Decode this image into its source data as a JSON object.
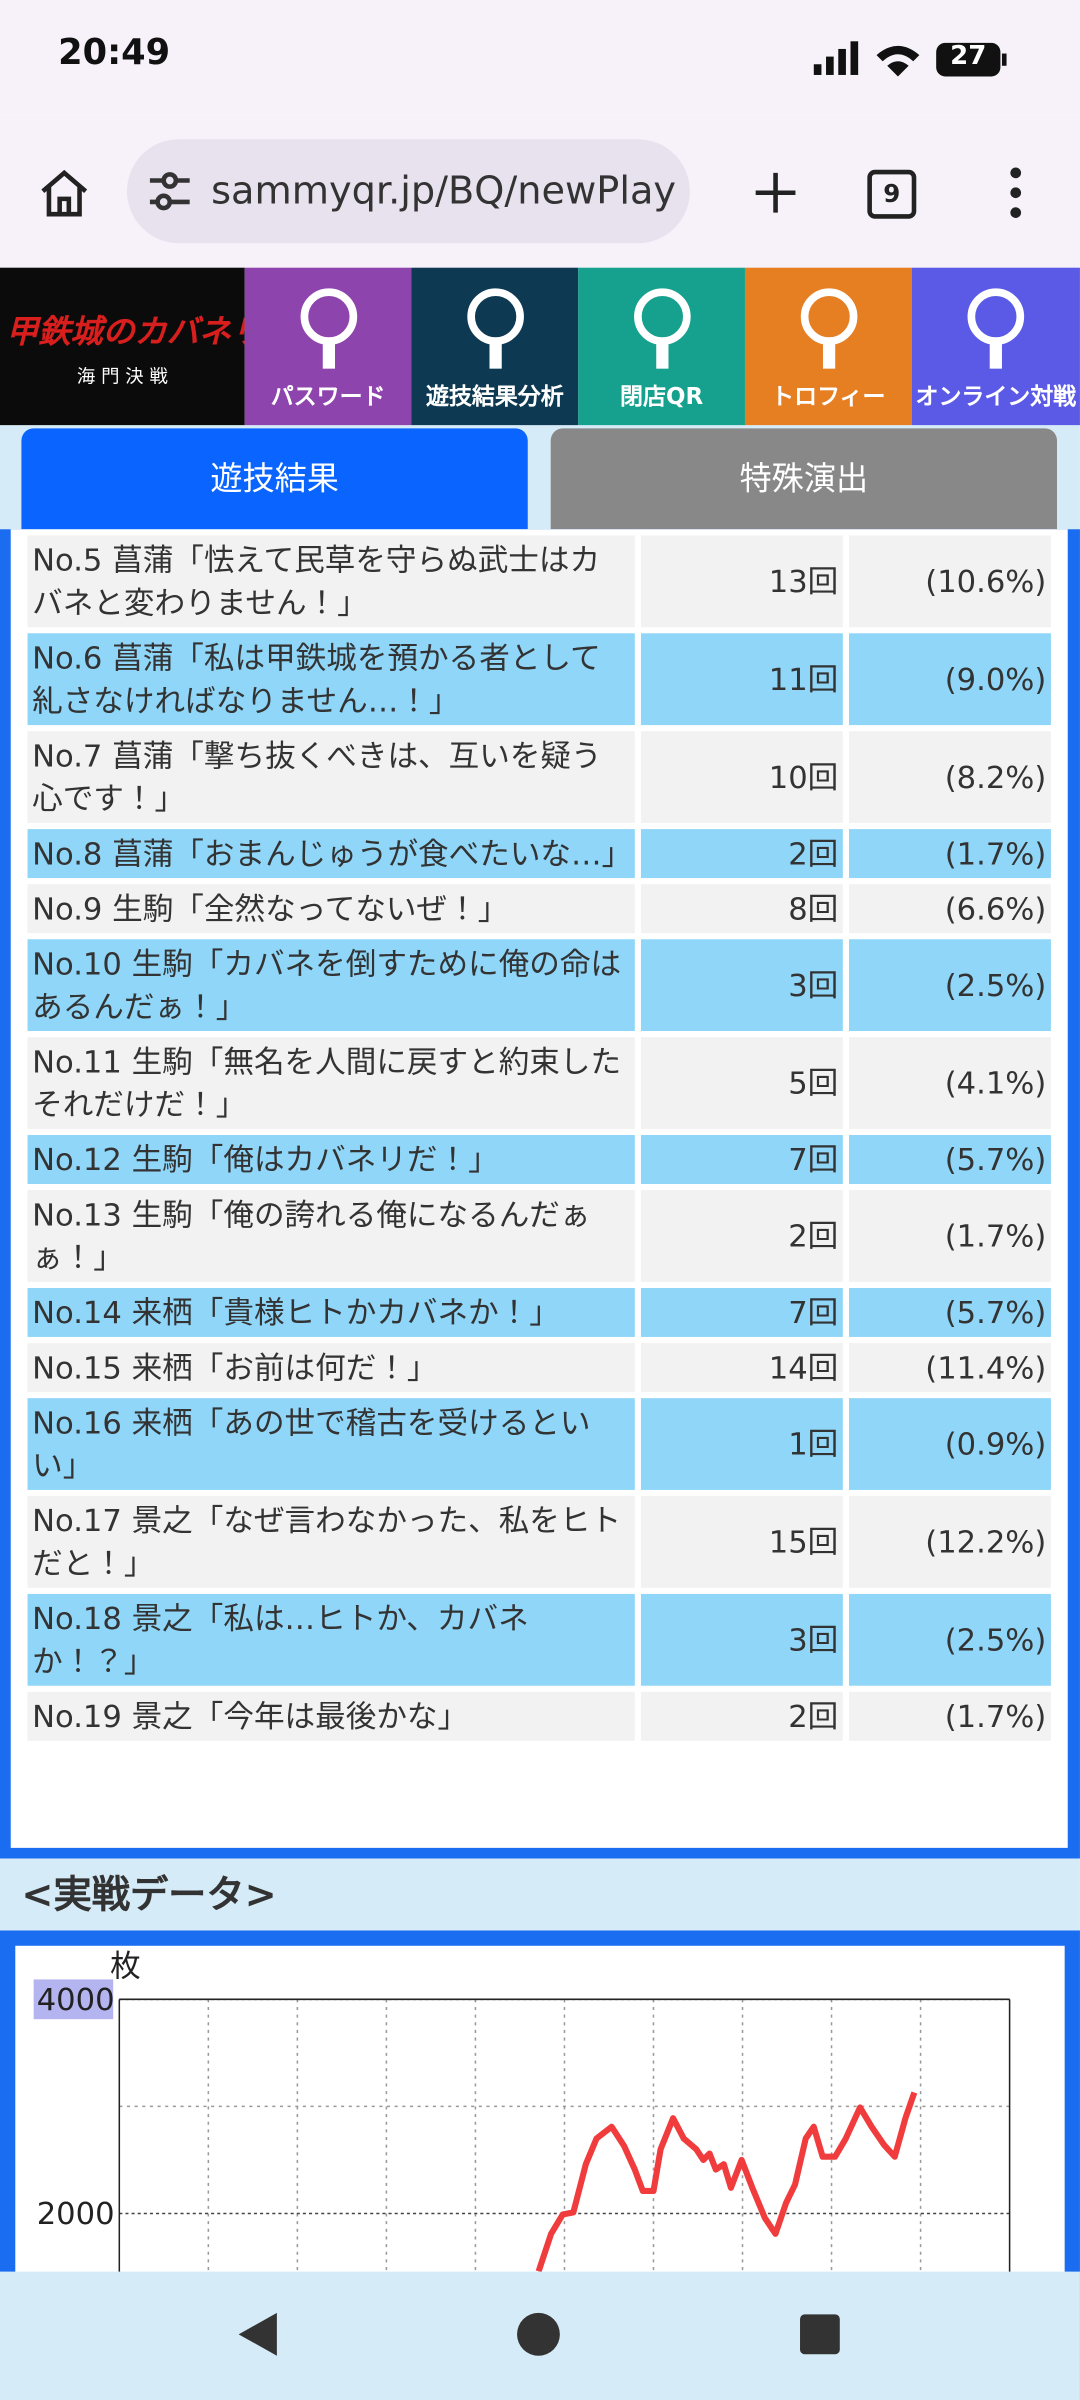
{
  "status_bar": {
    "time": "20:49",
    "battery": "27"
  },
  "browser": {
    "url": "sammyqr.jp/BQ/newPlay",
    "tab_count": "9"
  },
  "nav": {
    "logo": "甲鉄城のカバネリ",
    "logo_sub": "海 門 決 戦",
    "items": [
      "パスワード",
      "遊技結果分析",
      "閉店QR",
      "トロフィー",
      "オンライン対戦"
    ]
  },
  "tabs": [
    "遊技結果",
    "特殊演出"
  ],
  "table": {
    "rows": [
      [
        "No.5 菖蒲「怯えて民草を守らぬ武士はカバネと変わりません！」",
        "13回",
        "(10.6%)"
      ],
      [
        "No.6 菖蒲「私は甲鉄城を預かる者として糺さなければなりません…！」",
        "11回",
        "(9.0%)"
      ],
      [
        "No.7 菖蒲「撃ち抜くべきは、互いを疑う心です！」",
        "10回",
        "(8.2%)"
      ],
      [
        "No.8 菖蒲「おまんじゅうが食べたいな…」",
        "2回",
        "(1.7%)"
      ],
      [
        "No.9 生駒「全然なってないぜ！」",
        "8回",
        "(6.6%)"
      ],
      [
        "No.10 生駒「カバネを倒すために俺の命はあるんだぁ！」",
        "3回",
        "(2.5%)"
      ],
      [
        "No.11 生駒「無名を人間に戻すと約束した　それだけだ！」",
        "5回",
        "(4.1%)"
      ],
      [
        "No.12 生駒「俺はカバネリだ！」",
        "7回",
        "(5.7%)"
      ],
      [
        "No.13 生駒「俺の誇れる俺になるんだぁぁ！」",
        "2回",
        "(1.7%)"
      ],
      [
        "No.14 来栖「貴様ヒトかカバネか！」",
        "7回",
        "(5.7%)"
      ],
      [
        "No.15 来栖「お前は何だ！」",
        "14回",
        "(11.4%)"
      ],
      [
        "No.16 来栖「あの世で稽古を受けるといい」",
        "1回",
        "(0.9%)"
      ],
      [
        "No.17 景之「なぜ言わなかった、私をヒトだと！」",
        "15回",
        "(12.2%)"
      ],
      [
        "No.18 景之「私は…ヒトか、カバネか！？」",
        "3回",
        "(2.5%)"
      ],
      [
        "No.19 景之「今年は最後かな」",
        "2回",
        "(1.7%)"
      ]
    ]
  },
  "section_title": "<実戦データ>",
  "chart_data": {
    "type": "line",
    "y_label": "枚",
    "x": [
      4.71,
      4.85,
      4.98,
      5.1,
      5.24,
      5.36,
      5.53,
      5.67,
      5.79,
      5.88,
      6.0,
      6.08,
      6.22,
      6.34,
      6.48,
      6.56,
      6.63,
      6.7,
      6.79,
      6.87,
      6.99,
      7.11,
      7.25,
      7.37,
      7.49,
      7.59,
      7.71,
      7.8,
      7.9,
      8.04,
      8.16,
      8.32,
      8.45,
      8.59,
      8.71,
      8.83,
      8.93
    ],
    "series": [
      {
        "color": "#f03c3c",
        "values": [
          1460,
          1810,
          1990,
          2010,
          2460,
          2700,
          2810,
          2630,
          2410,
          2210,
          2210,
          2600,
          2890,
          2700,
          2600,
          2500,
          2560,
          2410,
          2460,
          2240,
          2500,
          2240,
          1960,
          1810,
          2100,
          2270,
          2700,
          2810,
          2530,
          2530,
          2700,
          2990,
          2810,
          2640,
          2530,
          2890,
          3130
        ]
      }
    ],
    "xlim": [
      0,
      10
    ],
    "ylim": [
      0,
      4000
    ],
    "yticks": [
      4000,
      2000
    ],
    "grid": true
  }
}
